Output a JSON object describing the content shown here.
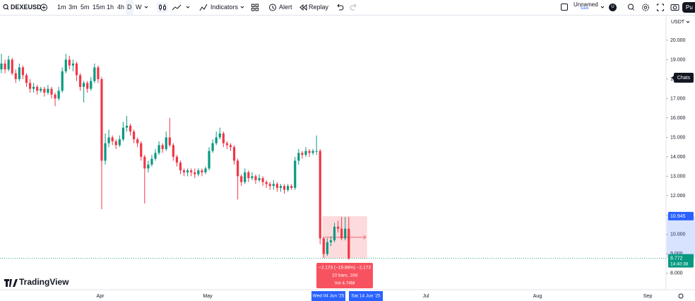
{
  "toolbar": {
    "symbol": "DEXEUSD",
    "intervals": [
      "1m",
      "3m",
      "5m",
      "15m",
      "1h",
      "4h",
      "D",
      "W"
    ],
    "indicators": "Indicators",
    "alert": "Alert",
    "replay": "Replay",
    "layout_name": "Unnamed",
    "save": "Save",
    "user": "U",
    "publish": "Pu"
  },
  "currency": "USDT",
  "tooltip": "Chats",
  "watermark": "TradingView",
  "clock": "14:40:38",
  "chart_data": {
    "type": "candlestick",
    "up_color": "#089981",
    "down_color": "#f23645",
    "open": [
      18.5,
      18.8,
      18.5,
      19.0,
      18.3,
      18.0,
      18.6,
      18.2,
      17.8,
      17.5,
      17.6,
      17.4,
      17.5,
      17.3,
      17.5,
      17.2,
      17.0,
      17.4,
      18.4,
      19.0,
      18.7,
      18.8,
      18.2,
      17.6,
      17.8,
      17.5,
      17.9,
      18.6,
      18.0,
      13.8,
      14.7,
      15.0,
      14.8,
      14.6,
      14.9,
      15.5,
      15.6,
      15.3,
      14.9,
      14.7,
      14.0,
      13.4,
      13.6,
      13.9,
      14.2,
      14.6,
      14.4,
      15.0,
      14.6,
      14.0,
      13.7,
      13.3,
      13.2,
      13.3,
      13.2,
      13.1,
      13.3,
      13.2,
      13.4,
      14.3,
      14.7,
      15.0,
      15.2,
      14.7,
      14.6,
      14.5,
      13.8,
      13.0,
      12.7,
      13.2,
      12.9,
      13.0,
      12.8,
      12.9,
      12.7,
      12.6,
      12.5,
      12.6,
      12.4,
      12.5,
      12.3,
      12.5,
      12.4,
      13.8,
      14.2,
      14.1,
      14.3,
      14.2,
      14.3,
      14.3,
      9.8,
      9.0,
      9.6,
      9.7,
      10.4,
      10.3,
      9.8,
      10.3
    ],
    "high": [
      19.3,
      19.0,
      19.2,
      19.1,
      18.5,
      18.8,
      18.7,
      18.3,
      18.0,
      17.8,
      17.7,
      17.6,
      17.6,
      17.7,
      17.6,
      17.3,
      17.6,
      18.6,
      19.3,
      19.2,
      19.0,
      18.9,
      18.3,
      17.9,
      17.9,
      18.1,
      18.8,
      18.7,
      18.1,
      15.2,
      15.4,
      15.1,
      14.9,
      15.1,
      15.8,
      16.1,
      15.7,
      15.4,
      15.0,
      14.8,
      14.1,
      13.8,
      14.1,
      14.4,
      14.8,
      14.7,
      15.3,
      16.0,
      14.7,
      14.1,
      13.8,
      13.4,
      13.4,
      13.4,
      13.4,
      13.4,
      13.4,
      13.5,
      14.5,
      14.9,
      15.3,
      15.5,
      15.3,
      14.8,
      14.7,
      14.6,
      13.9,
      13.1,
      13.4,
      13.3,
      13.2,
      13.1,
      13.1,
      13.0,
      12.8,
      12.7,
      12.8,
      12.7,
      12.6,
      12.6,
      12.6,
      12.6,
      14.0,
      14.4,
      14.3,
      14.5,
      14.4,
      14.4,
      15.1,
      14.4,
      9.9,
      9.8,
      9.9,
      10.6,
      10.7,
      10.9,
      10.9,
      10.9
    ],
    "low": [
      18.3,
      18.3,
      18.4,
      18.2,
      17.8,
      17.9,
      18.0,
      17.6,
      17.3,
      17.3,
      17.2,
      17.3,
      17.1,
      17.2,
      17.0,
      16.6,
      16.9,
      17.3,
      18.3,
      18.5,
      18.4,
      17.9,
      17.4,
      16.8,
      17.3,
      17.4,
      17.8,
      17.8,
      11.3,
      13.6,
      14.5,
      14.6,
      14.4,
      14.5,
      14.8,
      15.3,
      15.1,
      14.7,
      14.5,
      13.8,
      11.6,
      13.2,
      13.5,
      13.8,
      14.1,
      14.2,
      14.3,
      14.5,
      13.8,
      13.5,
      13.1,
      13.0,
      13.0,
      13.0,
      12.9,
      13.0,
      13.0,
      13.1,
      13.3,
      14.2,
      14.6,
      14.9,
      14.5,
      14.4,
      14.3,
      13.6,
      11.8,
      12.5,
      12.6,
      12.7,
      12.8,
      12.6,
      12.7,
      12.5,
      12.4,
      12.3,
      12.3,
      12.2,
      12.2,
      12.1,
      12.2,
      12.3,
      12.3,
      13.6,
      13.9,
      14.0,
      14.0,
      14.1,
      14.1,
      9.5,
      8.8,
      8.9,
      9.4,
      9.6,
      10.1,
      9.7,
      9.7,
      8.7
    ],
    "close": [
      18.8,
      18.5,
      19.0,
      18.3,
      18.0,
      18.6,
      18.2,
      17.8,
      17.5,
      17.6,
      17.4,
      17.5,
      17.3,
      17.5,
      17.2,
      17.0,
      17.4,
      18.4,
      19.0,
      18.7,
      18.8,
      18.2,
      17.6,
      17.8,
      17.5,
      17.9,
      18.6,
      18.0,
      13.8,
      14.7,
      15.0,
      14.8,
      14.6,
      14.9,
      15.5,
      15.6,
      15.3,
      14.9,
      14.7,
      14.0,
      13.4,
      13.6,
      13.9,
      14.2,
      14.6,
      14.4,
      15.0,
      14.6,
      14.0,
      13.7,
      13.3,
      13.2,
      13.3,
      13.2,
      13.1,
      13.3,
      13.2,
      13.4,
      14.3,
      14.7,
      15.0,
      15.2,
      14.7,
      14.6,
      14.5,
      13.8,
      13.0,
      12.7,
      13.2,
      12.9,
      13.0,
      12.8,
      12.9,
      12.7,
      12.6,
      12.5,
      12.6,
      12.4,
      12.5,
      12.3,
      12.5,
      12.4,
      13.8,
      14.2,
      14.1,
      14.3,
      14.2,
      14.3,
      14.3,
      9.8,
      9.0,
      9.6,
      9.7,
      10.4,
      10.3,
      9.8,
      10.3,
      8.772
    ],
    "ylim": [
      7.16,
      21.27
    ],
    "yticks": [
      {
        "value": 8,
        "label": "8.000"
      },
      {
        "value": 9,
        "label": "9.000"
      },
      {
        "value": 10,
        "label": "10.000"
      },
      {
        "value": 11,
        "label": "11.000"
      },
      {
        "value": 12,
        "label": "12.000"
      },
      {
        "value": 13,
        "label": "13.000"
      },
      {
        "value": 14,
        "label": "14.000"
      },
      {
        "value": 15,
        "label": "15.000"
      },
      {
        "value": 16,
        "label": "16.000"
      },
      {
        "value": 17,
        "label": "17.000"
      },
      {
        "value": 18,
        "label": "18.000"
      },
      {
        "value": 19,
        "label": "19.000"
      },
      {
        "value": 20,
        "label": "20.000"
      }
    ],
    "xtick_labels": [
      "Apr",
      "May",
      "Jul",
      "Aug",
      "Sep"
    ],
    "price_markers": [
      {
        "value": 10.945,
        "color": "#2962ff"
      },
      {
        "value": 8.772,
        "color": "#089981"
      }
    ],
    "measure": {
      "from": 10.945,
      "to": 8.772,
      "lines": [
        "−2.173 (−19.86%) −2,173",
        "10 bars, 10d",
        "Vol 4.74M"
      ],
      "start_label": "Wed 04 Jun '25",
      "end_label": "Sat 14 Jun '25"
    }
  }
}
